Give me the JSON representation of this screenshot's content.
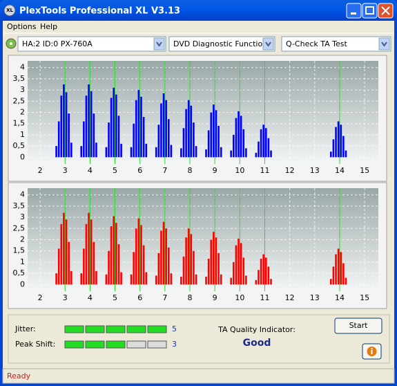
{
  "window": {
    "title": "PlexTools Professional XL V3.13"
  },
  "menu": [
    "Options",
    "Help"
  ],
  "selectors": [
    "HA:2 ID:0  PX-760A",
    "DVD Diagnostic Functions",
    "Q-Check TA Test"
  ],
  "chart_data": [
    {
      "type": "histogram",
      "color": "#0000ff",
      "grid": true,
      "reference_lines": [
        3,
        4,
        5,
        6,
        7,
        8,
        9,
        10,
        11,
        14
      ],
      "reference_color": "#22dd22",
      "x": [
        2.65,
        2.75,
        2.85,
        2.95,
        3.05,
        3.15,
        3.25,
        3.65,
        3.75,
        3.85,
        3.95,
        4.05,
        4.15,
        4.25,
        4.65,
        4.75,
        4.85,
        4.95,
        5.05,
        5.15,
        5.25,
        5.65,
        5.75,
        5.85,
        5.95,
        6.05,
        6.15,
        6.25,
        6.65,
        6.75,
        6.85,
        6.95,
        7.05,
        7.15,
        7.25,
        7.65,
        7.75,
        7.85,
        7.95,
        8.05,
        8.15,
        8.25,
        8.65,
        8.75,
        8.85,
        8.95,
        9.05,
        9.15,
        9.25,
        9.65,
        9.75,
        9.85,
        9.95,
        10.05,
        10.15,
        10.25,
        10.65,
        10.75,
        10.85,
        10.95,
        11.05,
        11.15,
        11.25,
        13.65,
        13.75,
        13.85,
        13.95,
        14.05,
        14.15,
        14.25
      ],
      "values": [
        0.5,
        1.6,
        2.75,
        3.25,
        2.9,
        1.95,
        0.65,
        0.5,
        1.6,
        2.75,
        3.25,
        2.95,
        1.95,
        0.65,
        0.45,
        1.55,
        2.65,
        3.1,
        2.8,
        1.85,
        0.6,
        0.45,
        1.5,
        2.55,
        3.0,
        2.7,
        1.8,
        0.6,
        0.45,
        1.45,
        2.4,
        2.85,
        2.55,
        1.7,
        0.55,
        0.4,
        1.3,
        2.15,
        2.55,
        2.3,
        1.55,
        0.5,
        0.35,
        1.2,
        2.0,
        2.35,
        2.1,
        1.4,
        0.45,
        0.3,
        1.0,
        1.75,
        2.05,
        1.85,
        1.25,
        0.4,
        0.2,
        0.7,
        1.25,
        1.45,
        1.3,
        0.85,
        0.3,
        0.25,
        0.8,
        1.35,
        1.6,
        1.45,
        0.95,
        0.3
      ],
      "xlim": [
        1.5,
        15.55
      ],
      "xticks": [
        2,
        3,
        4,
        5,
        6,
        7,
        8,
        9,
        10,
        11,
        12,
        13,
        14,
        15
      ],
      "ylim": [
        -0.3,
        4.3
      ],
      "yticks": [
        0,
        {
          "value": 0.5,
          "label": "0,5"
        },
        1,
        {
          "value": 1.5,
          "label": "1,5"
        },
        2,
        {
          "value": 2.5,
          "label": "2,5"
        },
        3,
        {
          "value": 3.5,
          "label": "3,5"
        },
        4
      ]
    },
    {
      "type": "histogram",
      "color": "#ff0000",
      "grid": true,
      "reference_lines": [
        3,
        4,
        5,
        6,
        7,
        8,
        9,
        10,
        11,
        14
      ],
      "reference_color": "#22dd22",
      "x": [
        2.65,
        2.75,
        2.85,
        2.95,
        3.05,
        3.15,
        3.25,
        3.65,
        3.75,
        3.85,
        3.95,
        4.05,
        4.15,
        4.25,
        4.65,
        4.75,
        4.85,
        4.95,
        5.05,
        5.15,
        5.25,
        5.65,
        5.75,
        5.85,
        5.95,
        6.05,
        6.15,
        6.25,
        6.65,
        6.75,
        6.85,
        6.95,
        7.05,
        7.15,
        7.25,
        7.65,
        7.75,
        7.85,
        7.95,
        8.05,
        8.15,
        8.25,
        8.65,
        8.75,
        8.85,
        8.95,
        9.05,
        9.15,
        9.25,
        9.65,
        9.75,
        9.85,
        9.95,
        10.05,
        10.15,
        10.25,
        10.65,
        10.75,
        10.85,
        10.95,
        11.05,
        11.15,
        11.25,
        13.65,
        13.75,
        13.85,
        13.95,
        14.05,
        14.15,
        14.25
      ],
      "values": [
        0.5,
        1.6,
        2.7,
        3.2,
        2.9,
        1.9,
        0.6,
        0.5,
        1.6,
        2.7,
        3.2,
        2.9,
        1.9,
        0.6,
        0.45,
        1.5,
        2.6,
        3.05,
        2.75,
        1.8,
        0.55,
        0.45,
        1.45,
        2.5,
        2.95,
        2.65,
        1.75,
        0.55,
        0.4,
        1.4,
        2.4,
        2.8,
        2.5,
        1.65,
        0.5,
        0.35,
        1.25,
        2.1,
        2.5,
        2.25,
        1.5,
        0.45,
        0.35,
        1.15,
        2.0,
        2.35,
        2.1,
        1.4,
        0.45,
        0.3,
        1.0,
        1.75,
        2.05,
        1.85,
        1.2,
        0.4,
        0.2,
        0.65,
        1.15,
        1.35,
        1.2,
        0.8,
        0.25,
        0.25,
        0.8,
        1.35,
        1.6,
        1.45,
        0.95,
        0.3
      ],
      "xlim": [
        1.5,
        15.55
      ],
      "xticks": [
        2,
        3,
        4,
        5,
        6,
        7,
        8,
        9,
        10,
        11,
        12,
        13,
        14,
        15
      ],
      "ylim": [
        -0.3,
        4.3
      ],
      "yticks": [
        0,
        {
          "value": 0.5,
          "label": "0,5"
        },
        1,
        {
          "value": 1.5,
          "label": "1,5"
        },
        2,
        {
          "value": 2.5,
          "label": "2,5"
        },
        3,
        {
          "value": 3.5,
          "label": "3,5"
        },
        4
      ]
    }
  ],
  "results": {
    "jitter": {
      "label": "Jitter:",
      "value": 5
    },
    "peak_shift": {
      "label": "Peak Shift:",
      "value": 3
    },
    "quality": {
      "label": "TA Quality Indicator:",
      "value": "Good"
    }
  },
  "buttons": {
    "start": "Start"
  },
  "status": "Ready"
}
